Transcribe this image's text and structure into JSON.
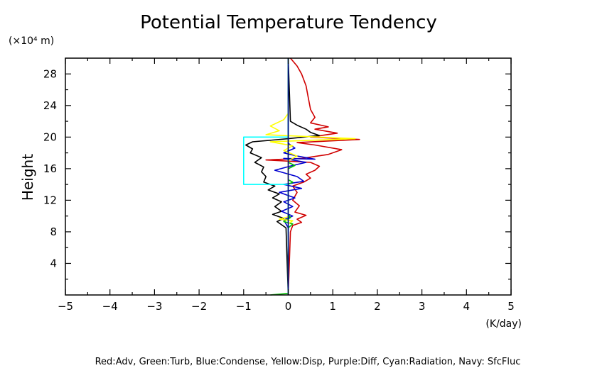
{
  "chart_data": {
    "type": "line",
    "title": "Potential Temperature Tendency",
    "ylabel": "Height",
    "y_unit": "(×10⁴ m)",
    "x_unit": "(K/day)",
    "xlabel": "",
    "xlim": [
      -5,
      5
    ],
    "ylim": [
      0,
      30
    ],
    "x_ticks": [
      "−5",
      "−4",
      "−3",
      "−2",
      "−1",
      "0",
      "1",
      "2",
      "3",
      "4",
      "5"
    ],
    "x_tick_values": [
      -5,
      -4,
      -3,
      -2,
      -1,
      0,
      1,
      2,
      3,
      4,
      5
    ],
    "y_ticks": [
      "4",
      "8",
      "12",
      "16",
      "20",
      "24",
      "28"
    ],
    "y_tick_values": [
      4,
      8,
      12,
      16,
      20,
      24,
      28
    ],
    "grid": false,
    "legend_text": "Red:Adv, Green:Turb, Blue:Condense, Yellow:Disp, Purple:Diff, Cyan:Radiation, Navy: SfcFluc",
    "legend_placement": "bottom",
    "series": [
      {
        "color": "#d00000",
        "points": [
          [
            0,
            0
          ],
          [
            0.05,
            8
          ],
          [
            0.1,
            8.8
          ],
          [
            0.3,
            9.2
          ],
          [
            0.2,
            9.6
          ],
          [
            0.4,
            10.1
          ],
          [
            0.15,
            10.5
          ],
          [
            0.25,
            11.3
          ],
          [
            0.1,
            12
          ],
          [
            0.2,
            13
          ],
          [
            0.1,
            13.8
          ],
          [
            0.35,
            14.3
          ],
          [
            0.5,
            14.8
          ],
          [
            0.4,
            15.3
          ],
          [
            0.6,
            15.8
          ],
          [
            0.7,
            16.3
          ],
          [
            0.5,
            16.8
          ],
          [
            -0.5,
            17.1
          ],
          [
            0.3,
            17.3
          ],
          [
            0.9,
            17.8
          ],
          [
            1.2,
            18.4
          ],
          [
            0.6,
            19.0
          ],
          [
            0.2,
            19.3
          ],
          [
            1.6,
            19.7
          ],
          [
            0.5,
            20.0
          ],
          [
            1.1,
            20.5
          ],
          [
            0.6,
            21.0
          ],
          [
            0.9,
            21.3
          ],
          [
            0.5,
            21.8
          ],
          [
            0.6,
            22.5
          ],
          [
            0.5,
            23.5
          ],
          [
            0.45,
            25
          ],
          [
            0.4,
            26.5
          ],
          [
            0.3,
            28
          ],
          [
            0.2,
            29
          ],
          [
            0.05,
            30
          ]
        ]
      },
      {
        "color": "#000000",
        "points": [
          [
            0,
            0
          ],
          [
            -0.05,
            8.5
          ],
          [
            -0.25,
            9.3
          ],
          [
            -0.1,
            9.7
          ],
          [
            -0.35,
            10.2
          ],
          [
            -0.15,
            10.6
          ],
          [
            -0.3,
            11.2
          ],
          [
            -0.15,
            11.8
          ],
          [
            -0.35,
            12.3
          ],
          [
            -0.2,
            12.8
          ],
          [
            -0.45,
            13.3
          ],
          [
            -0.3,
            13.8
          ],
          [
            -0.55,
            14.3
          ],
          [
            -0.5,
            15
          ],
          [
            -0.6,
            15.6
          ],
          [
            -0.55,
            16.2
          ],
          [
            -0.75,
            16.8
          ],
          [
            -0.6,
            17.4
          ],
          [
            -0.85,
            18.0
          ],
          [
            -0.8,
            18.5
          ],
          [
            -0.95,
            19.0
          ],
          [
            -0.8,
            19.4
          ],
          [
            0,
            19.8
          ],
          [
            0.7,
            20.2
          ],
          [
            0.5,
            20.6
          ],
          [
            0.4,
            21.0
          ],
          [
            0.2,
            21.5
          ],
          [
            0.05,
            22
          ],
          [
            0,
            30
          ]
        ]
      },
      {
        "color": "#0000d0",
        "points": [
          [
            0,
            0
          ],
          [
            0,
            8.5
          ],
          [
            -0.1,
            9.5
          ],
          [
            0.1,
            10
          ],
          [
            -0.15,
            10.6
          ],
          [
            0.1,
            11.2
          ],
          [
            -0.1,
            11.8
          ],
          [
            0.15,
            12.3
          ],
          [
            -0.2,
            13.0
          ],
          [
            0.3,
            13.5
          ],
          [
            -0.1,
            14.0
          ],
          [
            0.35,
            14.4
          ],
          [
            0.2,
            15.0
          ],
          [
            -0.3,
            15.8
          ],
          [
            0.1,
            16.4
          ],
          [
            0.4,
            16.8
          ],
          [
            -0.1,
            17.3
          ],
          [
            0.6,
            17.2
          ],
          [
            0.2,
            17.6
          ],
          [
            -0.1,
            18.0
          ],
          [
            0.15,
            18.6
          ],
          [
            0,
            19.2
          ],
          [
            0,
            30
          ]
        ]
      },
      {
        "color": "#00c000",
        "points": [
          [
            -0.4,
            0
          ],
          [
            0,
            0.2
          ],
          [
            0,
            8.5
          ],
          [
            0.1,
            9.0
          ],
          [
            -0.1,
            9.3
          ],
          [
            0.05,
            9.8
          ],
          [
            0,
            10.2
          ],
          [
            0,
            14
          ],
          [
            0.1,
            14.3
          ],
          [
            0,
            14.6
          ],
          [
            0,
            16
          ],
          [
            0.15,
            16.4
          ],
          [
            0,
            16.8
          ],
          [
            0,
            30
          ]
        ]
      },
      {
        "color": "#ffff00",
        "points": [
          [
            0,
            0
          ],
          [
            0,
            9
          ],
          [
            0.1,
            9.4
          ],
          [
            -0.2,
            9.6
          ],
          [
            0,
            9.9
          ],
          [
            0,
            17
          ],
          [
            0.2,
            17.6
          ],
          [
            -0.1,
            18.3
          ],
          [
            0.1,
            18.9
          ],
          [
            -0.4,
            19.4
          ],
          [
            1.5,
            19.8
          ],
          [
            -0.5,
            20.3
          ],
          [
            -0.2,
            20.8
          ],
          [
            -0.4,
            21.4
          ],
          [
            -0.1,
            22.2
          ],
          [
            0,
            23
          ],
          [
            0,
            30
          ]
        ]
      },
      {
        "color": "#00ffff",
        "points": [
          [
            0,
            0
          ],
          [
            0,
            14
          ],
          [
            -1,
            14
          ],
          [
            -1,
            20
          ],
          [
            0,
            20
          ],
          [
            0,
            30
          ]
        ]
      },
      {
        "color": "#000080",
        "points": [
          [
            0,
            0
          ],
          [
            0,
            30
          ]
        ]
      }
    ]
  }
}
